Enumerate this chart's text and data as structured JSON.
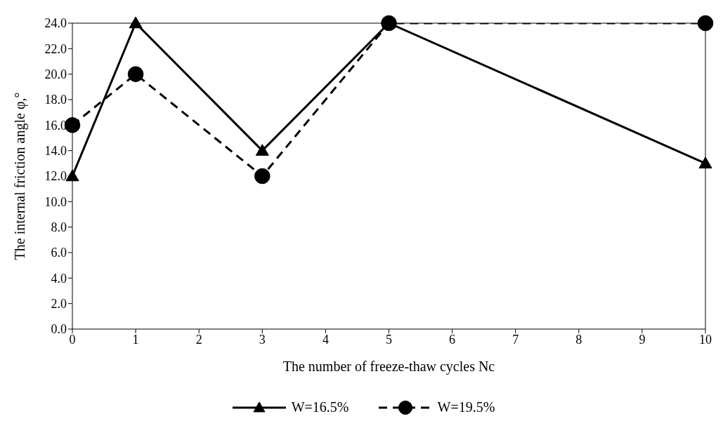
{
  "chart_data": {
    "type": "line",
    "xlabel": "The number of freeze-thaw cycles Nc",
    "ylabel": "The internal friction angle φ,°",
    "x": [
      0,
      1,
      3,
      5,
      10
    ],
    "series": [
      {
        "name": "W=16.5%",
        "color": "#000000",
        "values": [
          12,
          24,
          14,
          24,
          13
        ],
        "marker": "triangle",
        "line_style": "solid"
      },
      {
        "name": "W=19.5%",
        "color": "#000000",
        "values": [
          16,
          20,
          12,
          24,
          24
        ],
        "marker": "circle",
        "line_style": "dashed"
      }
    ],
    "xlim": [
      0,
      10
    ],
    "xticks": [
      0,
      1,
      2,
      3,
      4,
      5,
      6,
      7,
      8,
      9,
      10
    ],
    "ylim": [
      0,
      24
    ],
    "yticks": [
      {
        "value": 0,
        "label": "0.0"
      },
      {
        "value": 2,
        "label": "2.0"
      },
      {
        "value": 4,
        "label": "4.0"
      },
      {
        "value": 6,
        "label": "6.0"
      },
      {
        "value": 8,
        "label": "8.0"
      },
      {
        "value": 10,
        "label": "10.0"
      },
      {
        "value": 12,
        "label": "12.0"
      },
      {
        "value": 14,
        "label": "14.0"
      },
      {
        "value": 16,
        "label": "16.0"
      },
      {
        "value": 18,
        "label": "18.0"
      },
      {
        "value": 20,
        "label": "20.0"
      },
      {
        "value": 22,
        "label": "22.0"
      },
      {
        "value": 24,
        "label": "24.0"
      }
    ],
    "grid": false,
    "legend": "bottom"
  }
}
